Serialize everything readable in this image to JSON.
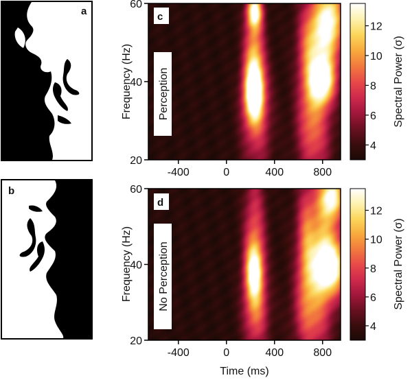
{
  "panel_a": {
    "letter": "a"
  },
  "panel_b": {
    "letter": "b"
  },
  "colorbar": {
    "label": "Spectral Power (σ)",
    "ticks": [
      4,
      6,
      8,
      10,
      12
    ],
    "range": [
      3,
      13.5
    ],
    "colors": [
      "#1b0a07",
      "#3a0d0c",
      "#6a1021",
      "#a3173c",
      "#cf2a4c",
      "#e84a48",
      "#f27a3e",
      "#f8aa3c",
      "#fbd65a",
      "#fdf2b0",
      "#ffffff"
    ]
  },
  "chart_data": [
    {
      "type": "heatmap",
      "letter": "c",
      "condition_label": "Perception",
      "xlabel": "",
      "ylabel": "Frequency (Hz)",
      "xlim": [
        -650,
        950
      ],
      "ylim": [
        20,
        60
      ],
      "xticks": [
        -400,
        0,
        400,
        800
      ],
      "yticks": [
        20,
        40,
        60
      ],
      "zlabel": "Spectral Power (σ)",
      "zrange": [
        3,
        13.5
      ],
      "blobs": [
        {
          "t": 230,
          "f": 37,
          "st": 55,
          "sf": 5,
          "a": 10
        },
        {
          "t": 235,
          "f": 58,
          "st": 45,
          "sf": 3,
          "a": 9
        },
        {
          "t": 230,
          "f": 47,
          "st": 60,
          "sf": 8,
          "a": 6
        },
        {
          "t": 250,
          "f": 30,
          "st": 90,
          "sf": 10,
          "a": 4
        },
        {
          "t": 800,
          "f": 40,
          "st": 70,
          "sf": 4,
          "a": 9
        },
        {
          "t": 790,
          "f": 51,
          "st": 110,
          "sf": 8,
          "a": 7
        },
        {
          "t": 730,
          "f": 28,
          "st": 100,
          "sf": 9,
          "a": 5
        },
        {
          "t": 870,
          "f": 57,
          "st": 80,
          "sf": 6,
          "a": 6
        },
        {
          "t": 680,
          "f": 44,
          "st": 60,
          "sf": 10,
          "a": 3
        }
      ]
    },
    {
      "type": "heatmap",
      "letter": "d",
      "condition_label": "No Perception",
      "xlabel": "Time (ms)",
      "ylabel": "Frequency (Hz)",
      "xlim": [
        -650,
        950
      ],
      "ylim": [
        20,
        60
      ],
      "xticks": [
        -400,
        0,
        400,
        800
      ],
      "yticks": [
        20,
        40,
        60
      ],
      "zlabel": "Spectral Power (σ)",
      "zrange": [
        3,
        13.5
      ],
      "blobs": [
        {
          "t": 230,
          "f": 38,
          "st": 50,
          "sf": 5,
          "a": 7
        },
        {
          "t": 235,
          "f": 45,
          "st": 65,
          "sf": 14,
          "a": 5
        },
        {
          "t": 250,
          "f": 27,
          "st": 80,
          "sf": 7,
          "a": 3.5
        },
        {
          "t": 860,
          "f": 39,
          "st": 100,
          "sf": 5,
          "a": 9
        },
        {
          "t": 880,
          "f": 58,
          "st": 70,
          "sf": 4,
          "a": 8
        },
        {
          "t": 790,
          "f": 48,
          "st": 120,
          "sf": 10,
          "a": 6
        },
        {
          "t": 720,
          "f": 27,
          "st": 110,
          "sf": 8,
          "a": 5
        },
        {
          "t": 660,
          "f": 44,
          "st": 50,
          "sf": 12,
          "a": 3
        }
      ]
    }
  ]
}
